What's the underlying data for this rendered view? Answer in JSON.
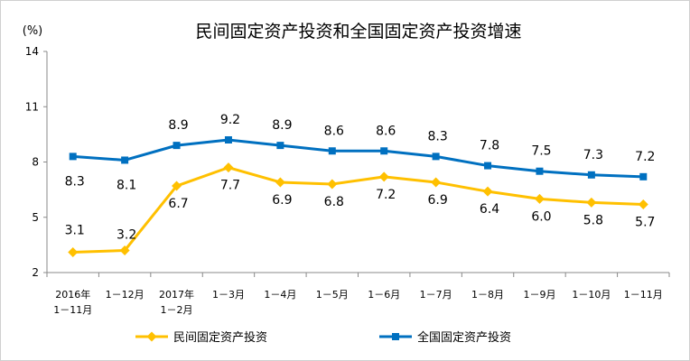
{
  "chart_data": {
    "type": "line",
    "title": "民间固定资产投资和全国固定资产投资增速",
    "unit_label": "(%)",
    "categories": [
      [
        "2016年",
        "1－11月"
      ],
      [
        "1－12月"
      ],
      [
        "2017年",
        "1－2月"
      ],
      [
        "1－3月"
      ],
      [
        "1－4月"
      ],
      [
        "1－5月"
      ],
      [
        "1－6月"
      ],
      [
        "1－7月"
      ],
      [
        "1－8月"
      ],
      [
        "1－9月"
      ],
      [
        "1－10月"
      ],
      [
        "1－11月"
      ]
    ],
    "series": [
      {
        "name": "民间固定资产投资",
        "color": "#FFC000",
        "marker": "diamond",
        "values": [
          3.1,
          3.2,
          6.7,
          7.7,
          6.9,
          6.8,
          7.2,
          6.9,
          6.4,
          6.0,
          5.8,
          5.7
        ]
      },
      {
        "name": "全国固定资产投资",
        "color": "#0070C0",
        "marker": "square",
        "values": [
          8.3,
          8.1,
          8.9,
          9.2,
          8.9,
          8.6,
          8.6,
          8.3,
          7.8,
          7.5,
          7.3,
          7.2
        ]
      }
    ],
    "ylim": [
      2,
      14
    ],
    "yticks": [
      2,
      5,
      8,
      11,
      14
    ],
    "grid": false,
    "legend_position": "bottom"
  }
}
